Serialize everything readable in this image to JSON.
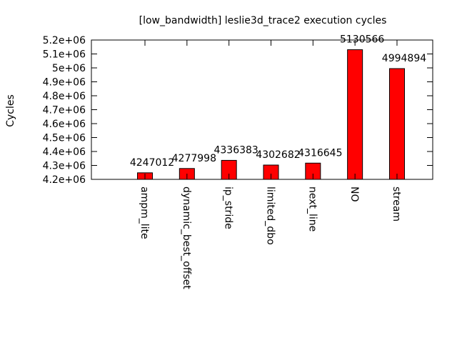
{
  "chart_data": {
    "type": "bar",
    "title": "[low_bandwidth] leslie3d_trace2 execution cycles",
    "ylabel": "Cycles",
    "xlabel": "",
    "categories": [
      "ampm_lite",
      "dynamic_best_offset",
      "ip_stride",
      "limited_dbo",
      "next_line",
      "NO",
      "stream"
    ],
    "values": [
      4247012,
      4277998,
      4336383,
      4302682,
      4316645,
      5130566,
      4994894
    ],
    "data_labels": [
      "4247012",
      "4277998",
      "4336383",
      "4302682",
      "4316645",
      "5130566",
      "4994894"
    ],
    "ylim": [
      4200000,
      5200000
    ],
    "yticks": [
      4200000,
      4300000,
      4400000,
      4500000,
      4600000,
      4700000,
      4800000,
      4900000,
      5000000,
      5100000,
      5200000
    ],
    "ytick_labels": [
      "4.2e+06",
      "4.3e+06",
      "4.4e+06",
      "4.5e+06",
      "4.6e+06",
      "4.7e+06",
      "4.8e+06",
      "4.9e+06",
      "5e+06",
      "5.1e+06",
      "5.2e+06"
    ],
    "grid": false,
    "bar_color": "#ff0000"
  }
}
